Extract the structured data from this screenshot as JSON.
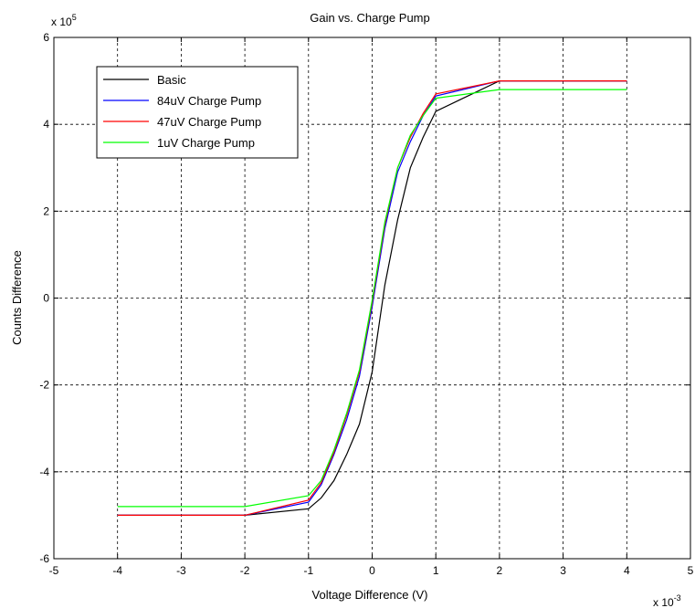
{
  "chart_data": {
    "type": "line",
    "title": "Gain vs. Charge Pump",
    "xlabel": "Voltage Difference (V)",
    "ylabel": "Counts Difference",
    "x_multiplier": {
      "base": "x 10",
      "exp": "-3"
    },
    "y_multiplier": {
      "base": "x 10",
      "exp": "5"
    },
    "xlim": [
      -5,
      5
    ],
    "ylim": [
      -6,
      6
    ],
    "xticks": [
      -5,
      -4,
      -3,
      -2,
      -1,
      0,
      1,
      2,
      3,
      4,
      5
    ],
    "yticks": [
      -6,
      -4,
      -2,
      0,
      2,
      4,
      6
    ],
    "xtick_labels": [
      "-5",
      "-4",
      "-3",
      "-2",
      "-1",
      "0",
      "1",
      "2",
      "3",
      "4",
      "5"
    ],
    "ytick_labels": [
      "-6",
      "-4",
      "-2",
      "0",
      "2",
      "4",
      "6"
    ],
    "grid": true,
    "legend_position": "top-left",
    "series": [
      {
        "name": "Basic",
        "color": "#000000",
        "x": [
          -4,
          -2,
          -1,
          -0.8,
          -0.6,
          -0.4,
          -0.2,
          0,
          0.2,
          0.4,
          0.6,
          0.8,
          1,
          2,
          4
        ],
        "y": [
          -5,
          -5,
          -4.85,
          -4.6,
          -4.2,
          -3.6,
          -2.9,
          -1.7,
          0.3,
          1.8,
          3.0,
          3.7,
          4.3,
          5,
          5
        ]
      },
      {
        "name": "84uV Charge Pump",
        "color": "#0000ff",
        "x": [
          -4,
          -2,
          -1,
          -0.8,
          -0.6,
          -0.4,
          -0.2,
          0,
          0.2,
          0.4,
          0.6,
          0.8,
          1,
          2,
          4
        ],
        "y": [
          -5,
          -5,
          -4.7,
          -4.3,
          -3.6,
          -2.8,
          -1.8,
          -0.2,
          1.6,
          2.9,
          3.6,
          4.2,
          4.65,
          5,
          5
        ]
      },
      {
        "name": "47uV Charge Pump",
        "color": "#ff0000",
        "x": [
          -4,
          -2,
          -1,
          -0.8,
          -0.6,
          -0.4,
          -0.2,
          0,
          0.2,
          0.4,
          0.6,
          0.8,
          1,
          2,
          4
        ],
        "y": [
          -5,
          -5,
          -4.65,
          -4.25,
          -3.55,
          -2.7,
          -1.7,
          -0.1,
          1.7,
          3.0,
          3.7,
          4.25,
          4.7,
          5,
          5
        ]
      },
      {
        "name": "1uV Charge Pump",
        "color": "#00ff00",
        "x": [
          -4,
          -2,
          -1,
          -0.8,
          -0.6,
          -0.4,
          -0.2,
          0,
          0.2,
          0.4,
          0.6,
          0.8,
          1,
          2,
          4
        ],
        "y": [
          -4.8,
          -4.8,
          -4.55,
          -4.2,
          -3.5,
          -2.65,
          -1.65,
          -0.05,
          1.75,
          3.0,
          3.75,
          4.2,
          4.6,
          4.8,
          4.8
        ]
      }
    ]
  }
}
